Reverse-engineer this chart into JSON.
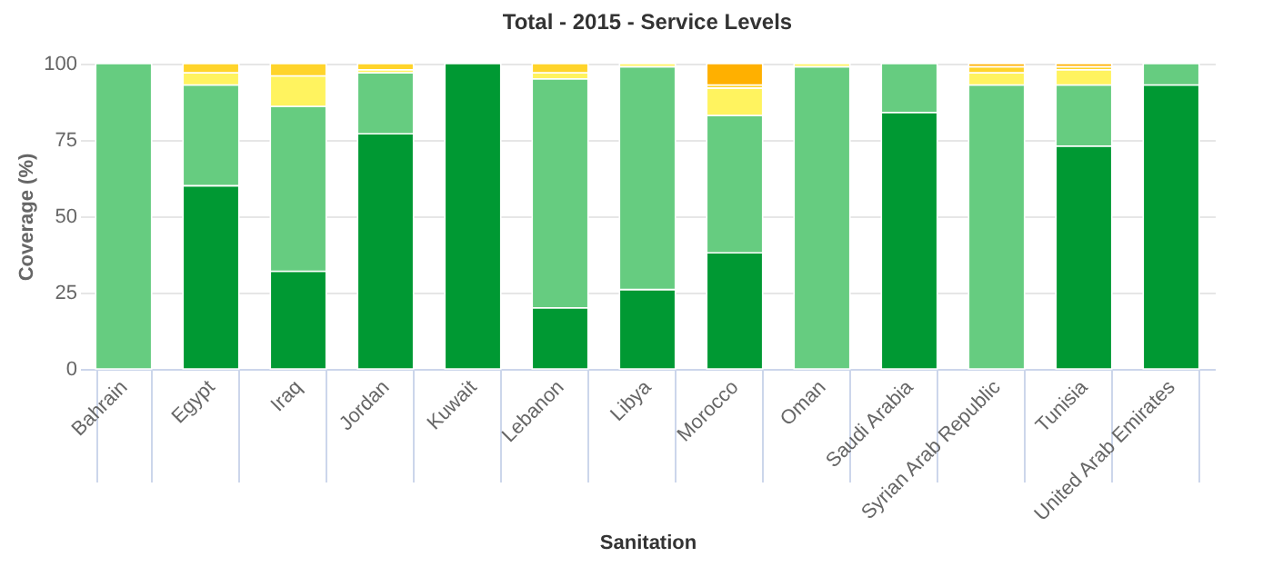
{
  "chart_data": {
    "type": "bar",
    "title": "Total - 2015 - Service Levels",
    "xlabel": "Sanitation",
    "ylabel": "Coverage (%)",
    "stacked": true,
    "grid": "y",
    "ylim": [
      0,
      100
    ],
    "yticks": [
      0,
      25,
      50,
      75,
      100
    ],
    "categories": [
      "Bahrain",
      "Egypt",
      "Iraq",
      "Jordan",
      "Kuwait",
      "Lebanon",
      "Libya",
      "Morocco",
      "Oman",
      "Saudi Arabia",
      "Syrian Arab Republic",
      "Tunisia",
      "United Arab Emirates"
    ],
    "series": [
      {
        "color": "#009933",
        "values": [
          0,
          60,
          32,
          77,
          100,
          20,
          26,
          38,
          0,
          84,
          0,
          73,
          93
        ]
      },
      {
        "color": "#66cc80",
        "values": [
          100,
          33,
          54,
          20,
          0,
          75,
          73,
          45,
          99,
          16,
          93,
          20,
          7
        ]
      },
      {
        "color": "#fff35f",
        "values": [
          0,
          4,
          10,
          1,
          0,
          2,
          1,
          9,
          1,
          0,
          4,
          5,
          0
        ]
      },
      {
        "color": "#ffd42a",
        "values": [
          0,
          3,
          4,
          2,
          0,
          3,
          0,
          1,
          0,
          0,
          2,
          1,
          0
        ]
      },
      {
        "color": "#ffb000",
        "values": [
          0,
          0,
          0,
          0,
          0,
          0,
          0,
          7,
          0,
          0,
          1,
          1,
          0
        ]
      }
    ]
  }
}
